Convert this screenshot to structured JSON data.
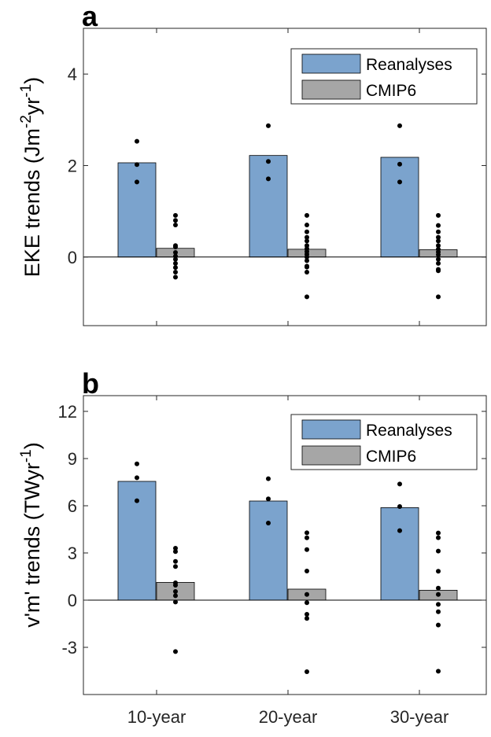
{
  "chart_data": [
    {
      "type": "bar",
      "panel_label": "a",
      "ylabel": "EKE trends (Jm",
      "ylabel_sup1": "-2",
      "ylabel_mid": "yr",
      "ylabel_sup2": "-1",
      "ylabel_end": ")",
      "categories": [
        "10-year",
        "20-year",
        "30-year"
      ],
      "ylim": [
        -1.5,
        5
      ],
      "yticks": [
        0,
        2,
        4
      ],
      "ytick_labels": [
        "0",
        "2",
        "4"
      ],
      "grid": false,
      "legend_position": "top-right",
      "series": [
        {
          "name": "Reanalyses",
          "color": "#7ba3cd",
          "values": [
            2.06,
            2.22,
            2.18
          ],
          "points": [
            [
              2.53,
              2.02,
              1.64
            ],
            [
              2.87,
              2.09,
              1.71
            ],
            [
              2.87,
              2.03,
              1.64
            ]
          ]
        },
        {
          "name": "CMIP6",
          "color": "#a6a6a6",
          "values": [
            0.19,
            0.17,
            0.16
          ],
          "points": [
            [
              0.91,
              0.8,
              0.7,
              0.25,
              0.22,
              0.1,
              0.02,
              -0.05,
              -0.14,
              -0.23,
              -0.33,
              -0.44
            ],
            [
              0.91,
              0.7,
              0.55,
              0.43,
              0.35,
              0.25,
              0.18,
              0.12,
              0.06,
              0.0,
              -0.08,
              -0.2,
              -0.22,
              -0.33,
              -0.87
            ],
            [
              0.91,
              0.69,
              0.55,
              0.43,
              0.35,
              0.25,
              0.17,
              0.11,
              0.05,
              -0.05,
              -0.14,
              -0.27,
              -0.3,
              -0.87
            ]
          ]
        }
      ]
    },
    {
      "type": "bar",
      "panel_label": "b",
      "ylabel": "v'm' trends (TWyr",
      "ylabel_sup1": "-1",
      "ylabel_end": ")",
      "categories": [
        "10-year",
        "20-year",
        "30-year"
      ],
      "ylim": [
        -6,
        13
      ],
      "yticks": [
        -3,
        0,
        3,
        6,
        9,
        12
      ],
      "ytick_labels": [
        "-3",
        "0",
        "3",
        "6",
        "9",
        "12"
      ],
      "grid": false,
      "legend_position": "top-right",
      "series": [
        {
          "name": "Reanalyses",
          "color": "#7ba3cd",
          "values": [
            7.55,
            6.3,
            5.88
          ],
          "points": [
            [
              8.66,
              7.78,
              6.32
            ],
            [
              7.72,
              6.44,
              4.9
            ],
            [
              7.38,
              5.95,
              4.42
            ]
          ]
        },
        {
          "name": "CMIP6",
          "color": "#a6a6a6",
          "values": [
            1.13,
            0.7,
            0.63
          ],
          "points": [
            [
              3.3,
              3.09,
              2.46,
              2.14,
              1.1,
              0.95,
              0.55,
              0.28,
              -0.12,
              -3.27
            ],
            [
              4.28,
              3.96,
              3.21,
              1.85,
              0.36,
              -0.16,
              -0.9,
              -1.16,
              -4.55
            ],
            [
              4.27,
              3.97,
              3.12,
              1.84,
              0.76,
              0.36,
              -0.27,
              -0.74,
              -1.58,
              -4.52
            ]
          ]
        }
      ]
    }
  ]
}
